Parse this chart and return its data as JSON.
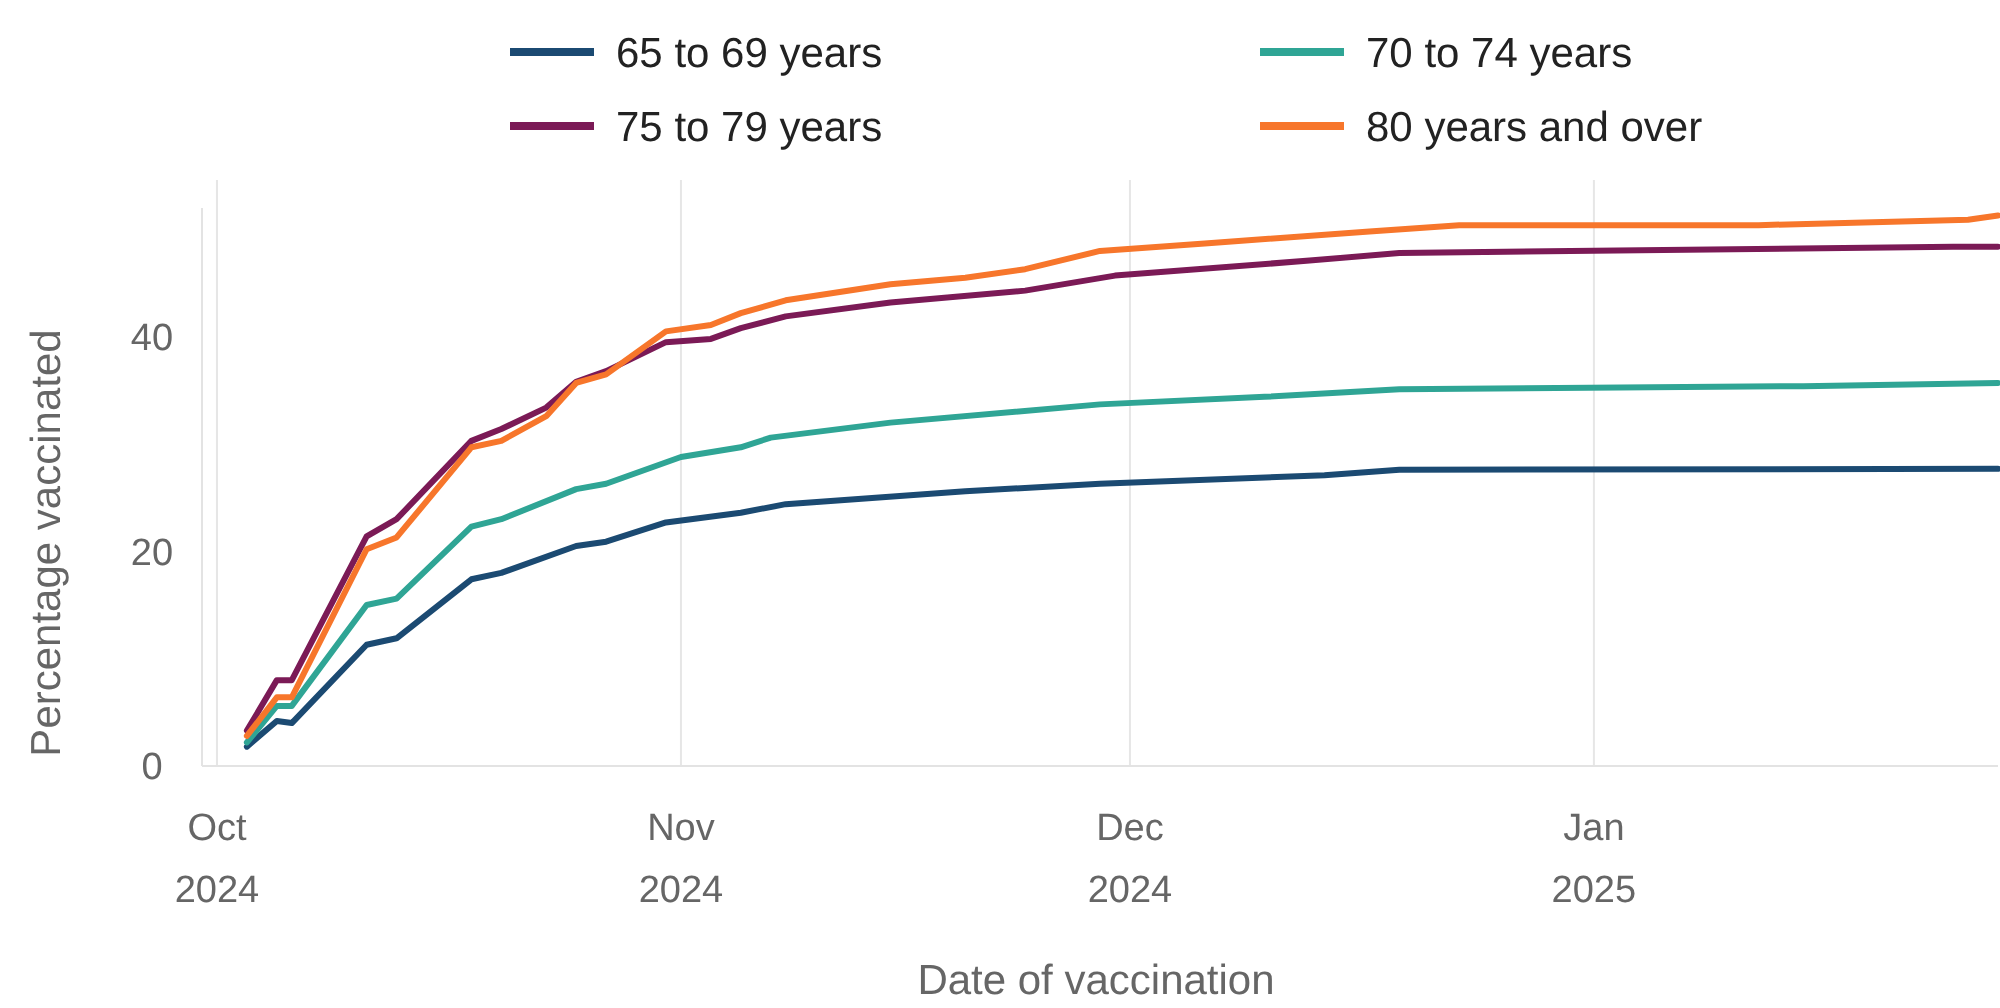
{
  "chart_data": {
    "type": "line",
    "xlabel": "Date of vaccination",
    "ylabel": "Percentage vaccinated",
    "xticks": [
      {
        "value": "2024-10-01",
        "label": "Oct 2024"
      },
      {
        "value": "2024-11-01",
        "label": "Nov 2024"
      },
      {
        "value": "2024-12-01",
        "label": "Dec 2024"
      },
      {
        "value": "2025-01-01",
        "label": "Jan 2025"
      }
    ],
    "xlim": [
      "2024-09-30",
      "2025-01-28"
    ],
    "ylim": [
      0,
      52
    ],
    "yticks": [
      0,
      20,
      40
    ],
    "grid": "x",
    "legend": "top",
    "line_style": "solid",
    "marker": "none",
    "series": [
      {
        "name": "65 to 69 years",
        "color": "#1b4a72",
        "x": [
          "2024-10-03",
          "2024-10-05",
          "2024-10-06",
          "2024-10-11",
          "2024-10-13",
          "2024-10-18",
          "2024-10-20",
          "2024-10-25",
          "2024-10-27",
          "2024-10-31",
          "2024-11-05",
          "2024-11-08",
          "2024-11-20",
          "2024-11-29",
          "2024-12-14",
          "2024-12-19",
          "2025-01-28"
        ],
        "values": [
          1.8,
          4.2,
          4.0,
          11.3,
          11.9,
          17.4,
          18.0,
          20.5,
          20.9,
          22.7,
          23.6,
          24.4,
          25.6,
          26.3,
          27.1,
          27.6,
          27.7
        ]
      },
      {
        "name": "70 to 74 years",
        "color": "#2fa595",
        "x": [
          "2024-10-03",
          "2024-10-05",
          "2024-10-06",
          "2024-10-11",
          "2024-10-13",
          "2024-10-18",
          "2024-10-20",
          "2024-10-25",
          "2024-10-27",
          "2024-11-01",
          "2024-11-05",
          "2024-11-07",
          "2024-11-15",
          "2024-11-29",
          "2024-12-10",
          "2024-12-19",
          "2025-01-15",
          "2025-01-28"
        ],
        "values": [
          2.2,
          5.6,
          5.6,
          15.0,
          15.6,
          22.3,
          23.0,
          25.8,
          26.3,
          28.8,
          29.7,
          30.6,
          32.0,
          33.7,
          34.4,
          35.1,
          35.4,
          35.7
        ]
      },
      {
        "name": "75 to 79 years",
        "color": "#7b1a56",
        "x": [
          "2024-10-03",
          "2024-10-05",
          "2024-10-06",
          "2024-10-11",
          "2024-10-13",
          "2024-10-18",
          "2024-10-20",
          "2024-10-23",
          "2024-10-25",
          "2024-10-27",
          "2024-10-31",
          "2024-11-03",
          "2024-11-05",
          "2024-11-08",
          "2024-11-15",
          "2024-11-24",
          "2024-11-30",
          "2024-12-13",
          "2024-12-19",
          "2025-01-25",
          "2025-01-28"
        ],
        "values": [
          3.3,
          8.0,
          8.0,
          21.4,
          23.0,
          30.3,
          31.4,
          33.4,
          35.8,
          36.8,
          39.5,
          39.8,
          40.8,
          41.9,
          43.2,
          44.3,
          45.7,
          47.1,
          47.8,
          48.4,
          48.4
        ]
      },
      {
        "name": "80 years and over",
        "color": "#f7762b",
        "x": [
          "2024-10-03",
          "2024-10-05",
          "2024-10-06",
          "2024-10-11",
          "2024-10-13",
          "2024-10-18",
          "2024-10-20",
          "2024-10-23",
          "2024-10-25",
          "2024-10-27",
          "2024-10-31",
          "2024-11-03",
          "2024-11-05",
          "2024-11-08",
          "2024-11-15",
          "2024-11-20",
          "2024-11-24",
          "2024-11-29",
          "2024-12-06",
          "2024-12-17",
          "2024-12-23",
          "2025-01-12",
          "2025-01-26",
          "2025-01-28"
        ],
        "values": [
          2.8,
          6.4,
          6.4,
          20.2,
          21.3,
          29.7,
          30.3,
          32.6,
          35.7,
          36.5,
          40.5,
          41.1,
          42.2,
          43.4,
          44.9,
          45.5,
          46.3,
          48.0,
          48.7,
          49.8,
          50.4,
          50.4,
          50.9,
          51.3
        ]
      }
    ]
  }
}
